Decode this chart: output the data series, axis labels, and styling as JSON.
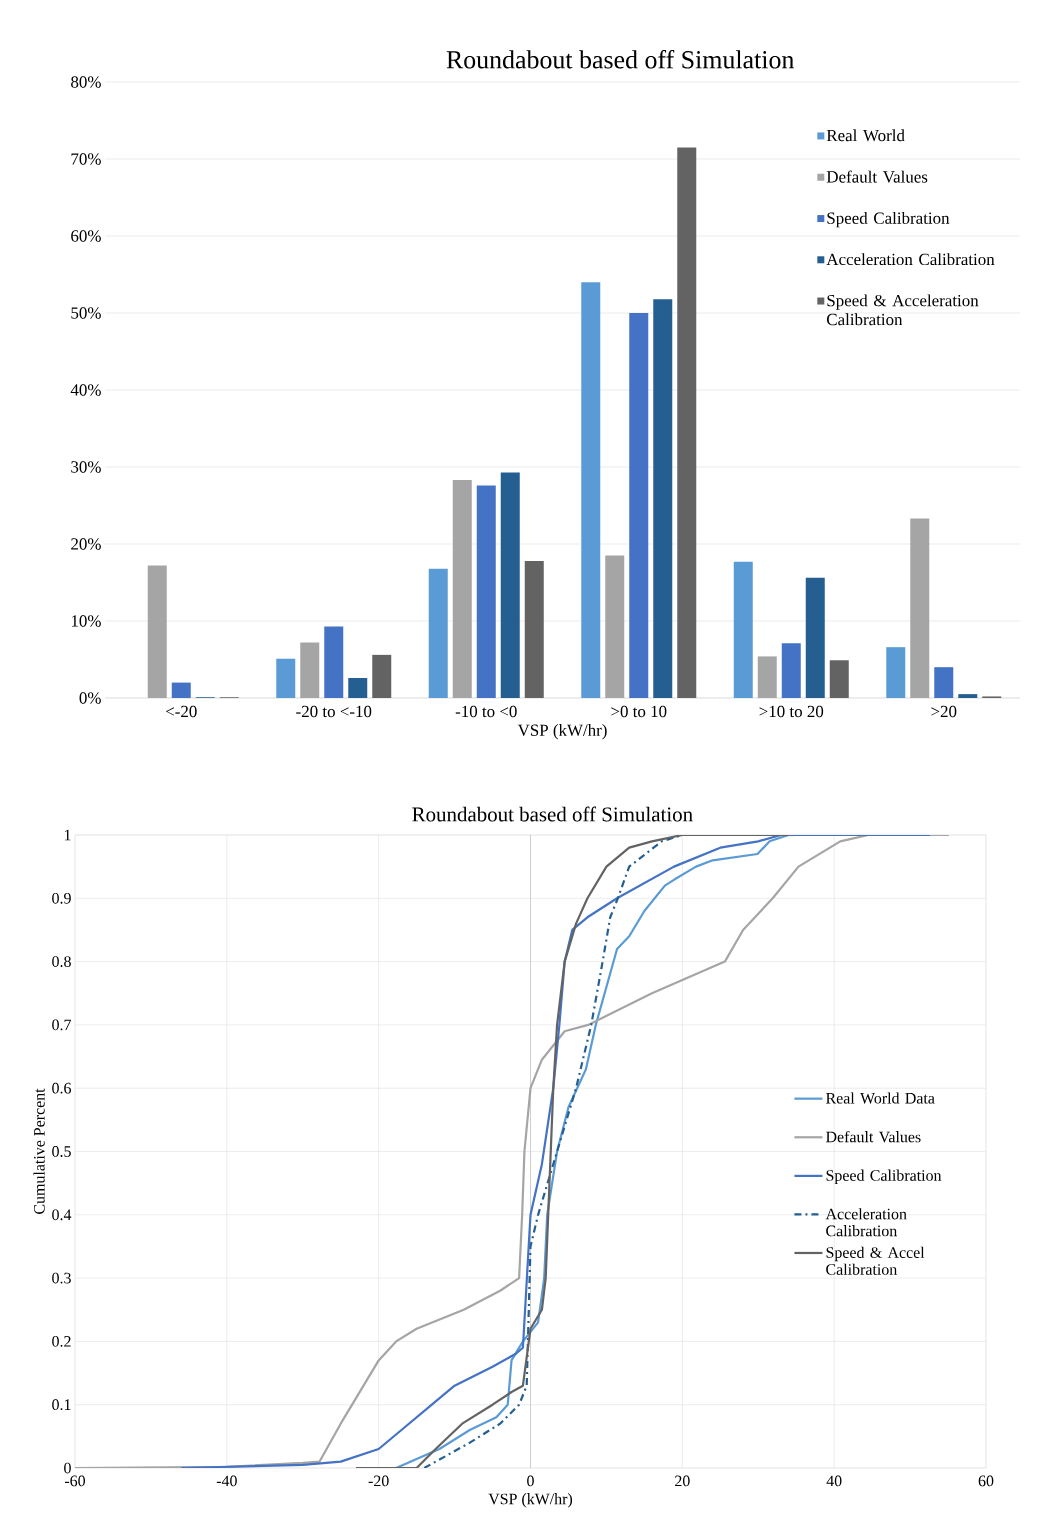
{
  "chart_data": [
    {
      "type": "bar",
      "title": "Roundabout based off Simulation",
      "xlabel": "VSP (kW/hr)",
      "categories": [
        "<-20",
        "-20 to <-10",
        "-10 to <0",
        ">0 to 10",
        ">10 to 20",
        ">20"
      ],
      "series": [
        {
          "name": "Real World",
          "color": "#5b9bd5",
          "values": [
            0,
            5.1,
            16.8,
            54.0,
            17.7,
            6.6
          ]
        },
        {
          "name": "Default Values",
          "color": "#a5a5a5",
          "values": [
            17.2,
            7.2,
            28.3,
            18.5,
            5.4,
            23.3
          ]
        },
        {
          "name": "Speed Calibration",
          "color": "#4472c4",
          "values": [
            2.0,
            9.3,
            27.6,
            50.0,
            7.1,
            4.0
          ]
        },
        {
          "name": "Acceleration Calibration",
          "color": "#255e91",
          "values": [
            0.1,
            2.6,
            29.3,
            51.8,
            15.6,
            0.5
          ]
        },
        {
          "name": "Speed & Acceleration Calibration",
          "color": "#636363",
          "values": [
            0.1,
            5.6,
            17.8,
            71.5,
            4.9,
            0.2
          ]
        }
      ],
      "ylim": [
        0,
        80
      ],
      "yticks": [
        {
          "value": 0,
          "label": "0%"
        },
        {
          "value": 10,
          "label": "10%"
        },
        {
          "value": 20,
          "label": "20%"
        },
        {
          "value": 30,
          "label": "30%"
        },
        {
          "value": 40,
          "label": "40%"
        },
        {
          "value": 50,
          "label": "50%"
        },
        {
          "value": 60,
          "label": "60%"
        },
        {
          "value": 70,
          "label": "70%"
        },
        {
          "value": 80,
          "label": "80%"
        }
      ],
      "grid": "y",
      "legend": "top right"
    },
    {
      "type": "line",
      "title": "Roundabout based off Simulation",
      "xlabel": "VSP (kW/hr)",
      "ylabel": "Cumulative Percent",
      "series": [
        {
          "name": "Real World Data",
          "color": "#5b9bd5",
          "line_style": "solid",
          "x": [
            -17.7,
            -12,
            -8,
            -4.5,
            -3,
            -2.5,
            -1,
            1,
            1.8,
            2.2,
            3.5,
            5,
            7.3,
            8.6,
            10,
            11.4,
            13,
            15,
            17.7,
            19,
            21.8,
            24,
            29.9,
            31.5,
            34
          ],
          "values": [
            0,
            0.03,
            0.06,
            0.08,
            0.1,
            0.17,
            0.2,
            0.23,
            0.3,
            0.4,
            0.5,
            0.57,
            0.63,
            0.7,
            0.76,
            0.82,
            0.84,
            0.88,
            0.92,
            0.93,
            0.95,
            0.96,
            0.97,
            0.99,
            1
          ]
        },
        {
          "name": "Default Values",
          "color": "#a5a5a5",
          "line_style": "solid",
          "x": [
            -60,
            -40,
            -30,
            -27.8,
            -25,
            -20,
            -17.7,
            -15,
            -8.8,
            -4,
            -1.5,
            -1.1,
            -0.8,
            0,
            1.5,
            4.5,
            7.6,
            16,
            25.6,
            28,
            31.9,
            35.3,
            40.8,
            44.5,
            55.1
          ],
          "values": [
            0,
            0.002,
            0.008,
            0.01,
            0.07,
            0.17,
            0.2,
            0.22,
            0.25,
            0.28,
            0.3,
            0.4,
            0.5,
            0.6,
            0.645,
            0.69,
            0.7,
            0.75,
            0.8,
            0.85,
            0.9,
            0.95,
            0.99,
            1,
            1
          ]
        },
        {
          "name": "Speed Calibration",
          "color": "#4472c4",
          "line_style": "solid",
          "x": [
            -46,
            -30,
            -25,
            -20,
            -17,
            -13,
            -10,
            -5,
            -2,
            -1,
            0,
            1.5,
            3,
            3.8,
            4.5,
            5.5,
            7.5,
            11.4,
            18.9,
            25,
            30,
            33,
            52.6
          ],
          "values": [
            0,
            0.005,
            0.01,
            0.03,
            0.06,
            0.1,
            0.13,
            0.16,
            0.18,
            0.19,
            0.4,
            0.48,
            0.6,
            0.7,
            0.8,
            0.85,
            0.87,
            0.9,
            0.95,
            0.98,
            0.99,
            1,
            1
          ]
        },
        {
          "name": "Acceleration Calibration",
          "color": "#255e91",
          "line_style": "dashed",
          "x": [
            -14,
            -8,
            -4,
            -1.5,
            -0.5,
            0,
            1,
            3.5,
            6,
            8,
            9.5,
            10.5,
            11.5,
            13,
            17.3,
            20
          ],
          "values": [
            0,
            0.04,
            0.07,
            0.1,
            0.13,
            0.35,
            0.4,
            0.5,
            0.6,
            0.7,
            0.8,
            0.87,
            0.9,
            0.95,
            0.99,
            1
          ]
        },
        {
          "name": "Speed & Accel Calibration",
          "color": "#636363",
          "line_style": "solid",
          "x": [
            -23,
            -15,
            -12.5,
            -9,
            -5,
            -2.5,
            -1,
            0,
            1.5,
            2,
            2.5,
            3,
            3.5,
            4.5,
            6,
            7.5,
            10,
            13,
            16,
            20,
            34
          ],
          "values": [
            0,
            0,
            0.03,
            0.07,
            0.1,
            0.12,
            0.13,
            0.22,
            0.25,
            0.3,
            0.45,
            0.6,
            0.7,
            0.8,
            0.86,
            0.9,
            0.95,
            0.98,
            0.99,
            1,
            1
          ]
        }
      ],
      "xlim": [
        -60,
        60
      ],
      "xticks": [
        -60,
        -40,
        -20,
        0,
        20,
        40,
        60
      ],
      "ylim": [
        0,
        1
      ],
      "yticks": [
        0,
        0.1,
        0.2,
        0.3,
        0.4,
        0.5,
        0.6,
        0.7,
        0.8,
        0.9,
        1
      ],
      "grid": true,
      "legend": "right",
      "marker": "none"
    }
  ]
}
